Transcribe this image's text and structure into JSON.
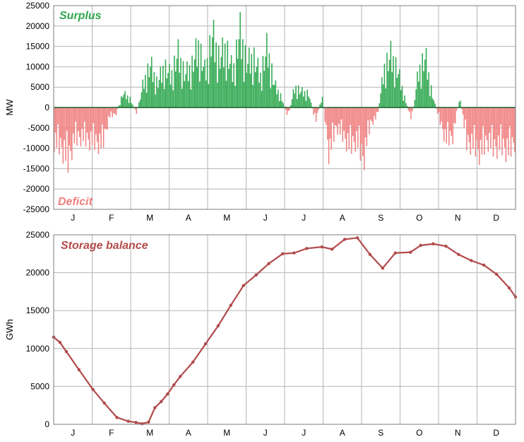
{
  "colors": {
    "surplus": "#2fa84f",
    "deficit": "#f08080",
    "storage": "#b24a4a",
    "grid": "#b4b4b4"
  },
  "chart_data": [
    {
      "type": "bar",
      "title": "",
      "xlabel": "",
      "ylabel": "MW",
      "ylim": [
        -25000,
        25000
      ],
      "yticks": [
        25000,
        20000,
        15000,
        10000,
        5000,
        0,
        -5000,
        -10000,
        -15000,
        -20000,
        -25000
      ],
      "months": [
        "J",
        "F",
        "M",
        "A",
        "M",
        "J",
        "J",
        "A",
        "S",
        "O",
        "N",
        "D"
      ],
      "grid": true,
      "legend": [
        {
          "name": "Surplus",
          "color": "#2fa84f",
          "position": "top-left"
        },
        {
          "name": "Deficit",
          "color": "#f08080",
          "position": "bottom-left"
        }
      ],
      "series": [
        {
          "name": "Surplus/Deficit",
          "resolution": "weekly samples (daily bars interpolated)",
          "week_values": [
            -11000,
            -12500,
            -17000,
            -10000,
            -9500,
            -10500,
            -11000,
            -12000,
            -3000,
            -2000,
            4500,
            3000,
            -2000,
            8000,
            13500,
            7500,
            13000,
            10000,
            17000,
            10500,
            13000,
            19500,
            11000,
            23000,
            15500,
            19000,
            11000,
            24000,
            14000,
            16000,
            10000,
            19000,
            7500,
            3500,
            -3000,
            6500,
            5000,
            4500,
            -4500,
            3500,
            -15000,
            -6000,
            -9000,
            -12500,
            -10500,
            -16500,
            -5000,
            -3000,
            12500,
            16500,
            11500,
            3000,
            -4000,
            11500,
            16000,
            4000,
            -3500,
            -10500,
            -9000,
            3500,
            -11000,
            -12000,
            -14500,
            -10500,
            -13000,
            -12000,
            -14000,
            -11000
          ]
        }
      ]
    },
    {
      "type": "line",
      "title": "",
      "xlabel": "",
      "ylabel": "GWh",
      "ylim": [
        0,
        25000
      ],
      "yticks": [
        25000,
        20000,
        15000,
        10000,
        5000,
        0
      ],
      "months": [
        "J",
        "F",
        "M",
        "A",
        "M",
        "J",
        "J",
        "A",
        "S",
        "O",
        "N",
        "D"
      ],
      "grid": true,
      "legend": [
        {
          "name": "Storage balance",
          "color": "#b24a4a",
          "position": "top-left"
        }
      ],
      "series": [
        {
          "name": "Storage balance",
          "x_day": [
            0,
            5,
            10,
            20,
            31,
            40,
            50,
            59,
            65,
            70,
            75,
            80,
            85,
            90,
            95,
            100,
            110,
            120,
            130,
            140,
            150,
            160,
            170,
            181,
            190,
            200,
            212,
            220,
            230,
            240,
            250,
            260,
            270,
            282,
            290,
            300,
            310,
            320,
            330,
            340,
            350,
            360,
            365
          ],
          "values": [
            11500,
            10800,
            9600,
            7200,
            4600,
            2800,
            900,
            400,
            250,
            80,
            300,
            2200,
            3000,
            4000,
            5200,
            6300,
            8200,
            10600,
            13000,
            15700,
            18300,
            19700,
            21200,
            22500,
            22600,
            23200,
            23400,
            23100,
            24400,
            24600,
            22400,
            20600,
            22600,
            22700,
            23600,
            23800,
            23500,
            22400,
            21600,
            21000,
            19800,
            18000,
            16800
          ]
        }
      ]
    }
  ]
}
